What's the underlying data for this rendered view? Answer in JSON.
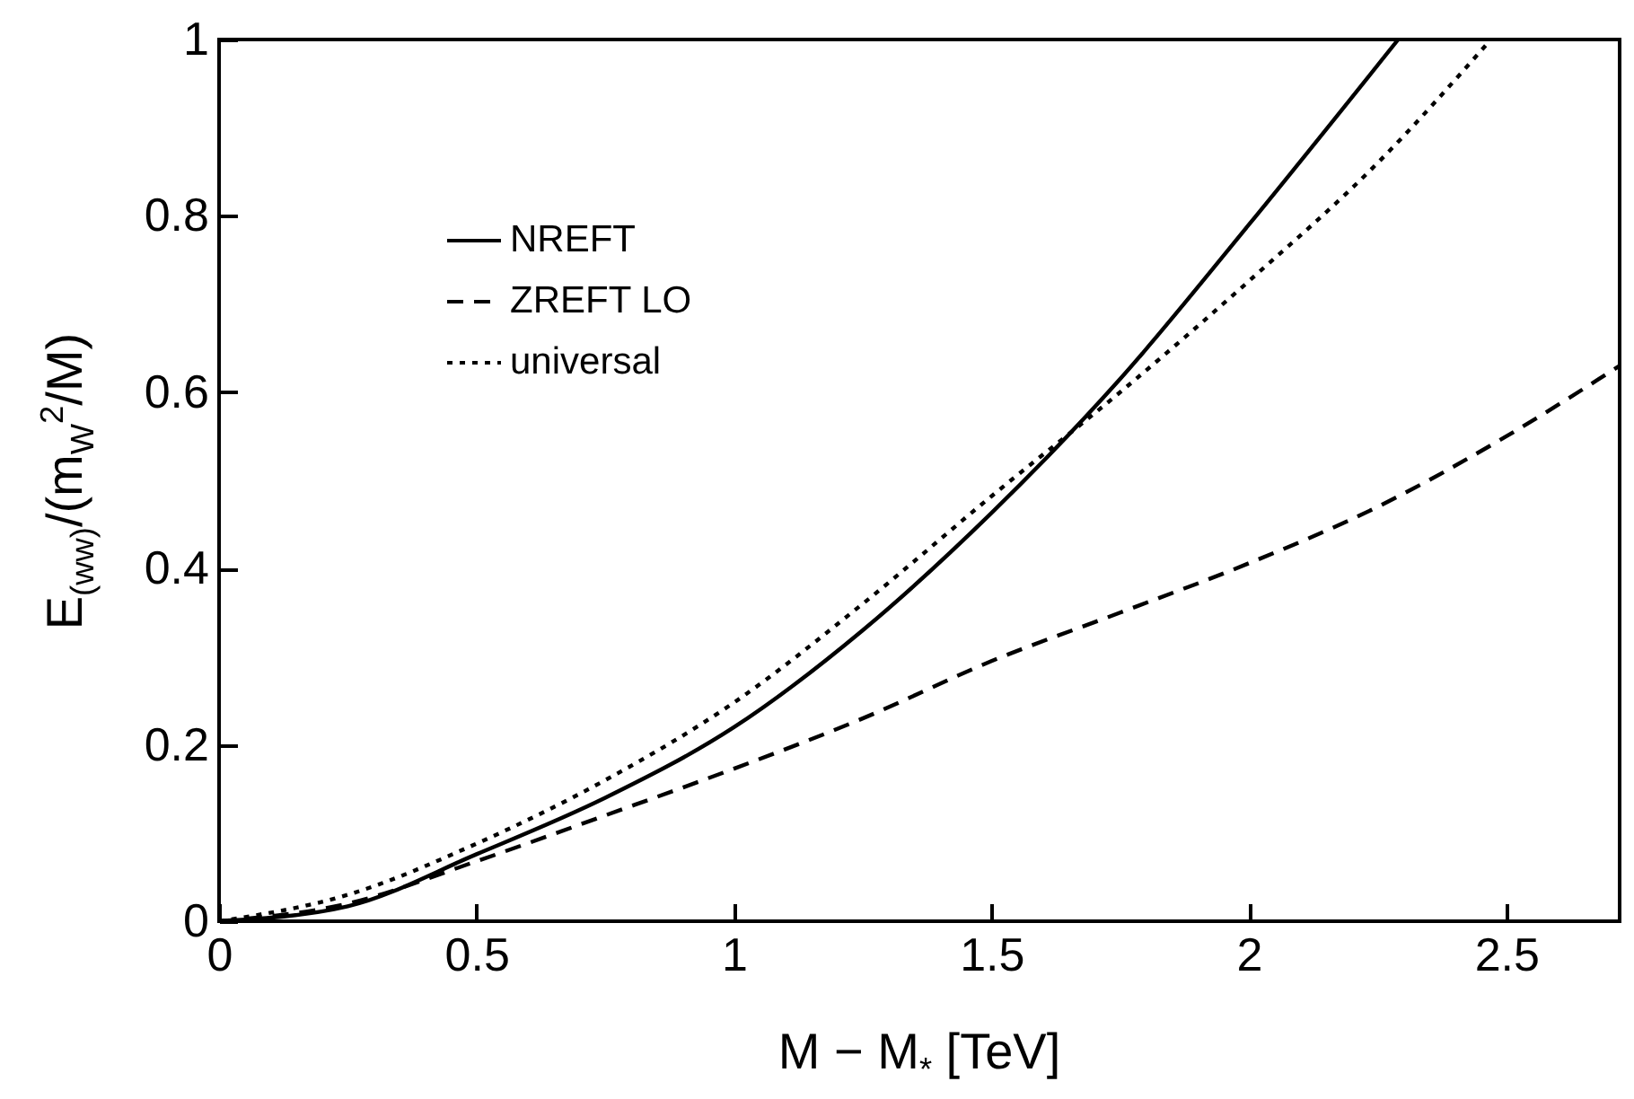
{
  "chart_data": {
    "type": "line",
    "xlabel": "M − M$_{*}$ [TeV]",
    "ylabel": "E$_{(ww)}$/(m$_{W}$$^{2}$/M)",
    "xlim": [
      0,
      2.72
    ],
    "ylim": [
      0,
      1
    ],
    "xticks": [
      0,
      0.5,
      1,
      1.5,
      2,
      2.5
    ],
    "yticks": [
      0,
      0.2,
      0.4,
      0.6,
      0.8,
      1
    ],
    "legend": "top left",
    "grid": false,
    "series": [
      {
        "name": "NREFT",
        "color": "#000000",
        "line_style": "solid",
        "x": [
          0,
          0.25,
          0.5,
          0.75,
          1,
          1.25,
          1.5,
          1.75,
          2,
          2.29
        ],
        "values": [
          0,
          0.017,
          0.076,
          0.14,
          0.22,
          0.33,
          0.463,
          0.615,
          0.79,
          1
        ]
      },
      {
        "name": "ZREFT LO",
        "color": "#000000",
        "line_style": "dashed",
        "x": [
          0,
          0.25,
          0.5,
          0.75,
          1,
          1.25,
          1.5,
          1.75,
          2,
          2.25,
          2.5,
          2.72
        ],
        "values": [
          0,
          0.02,
          0.068,
          0.12,
          0.173,
          0.23,
          0.295,
          0.35,
          0.406,
          0.47,
          0.55,
          0.63
        ]
      },
      {
        "name": "universal",
        "color": "#000000",
        "line_style": "dotted",
        "x": [
          0,
          0.25,
          0.5,
          0.75,
          1,
          1.25,
          1.5,
          1.75,
          2,
          2.25,
          2.47
        ],
        "values": [
          0,
          0.03,
          0.088,
          0.16,
          0.248,
          0.36,
          0.482,
          0.6,
          0.726,
          0.86,
          1
        ]
      }
    ]
  }
}
